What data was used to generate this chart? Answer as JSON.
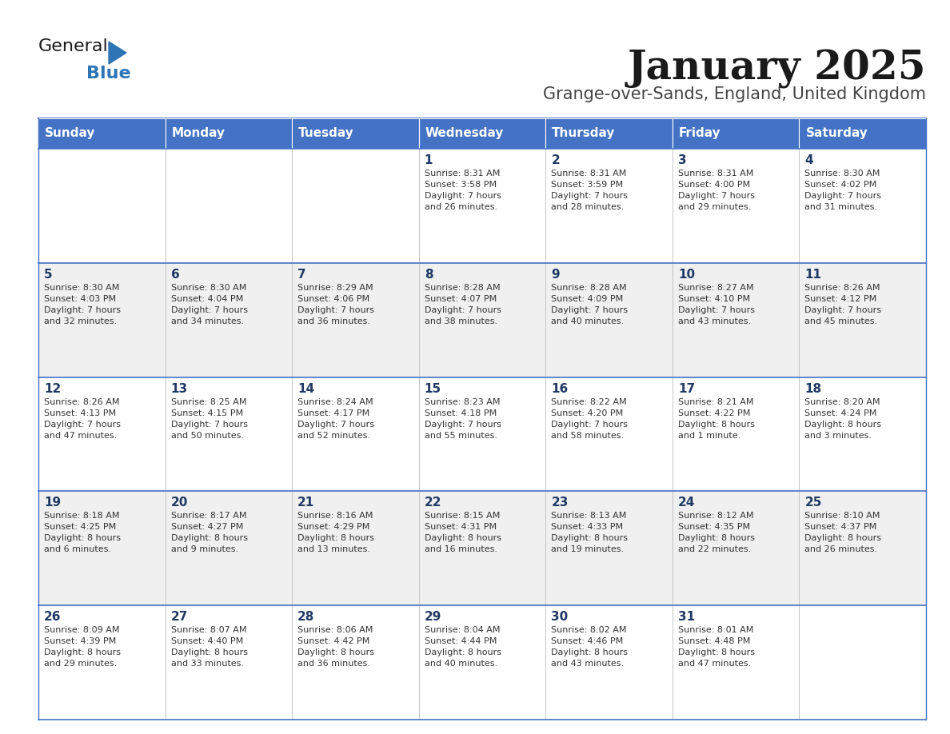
{
  "title": "January 2025",
  "subtitle": "Grange-over-Sands, England, United Kingdom",
  "header_bg": "#4472C4",
  "header_text_color": "#FFFFFF",
  "days_of_week": [
    "Sunday",
    "Monday",
    "Tuesday",
    "Wednesday",
    "Thursday",
    "Friday",
    "Saturday"
  ],
  "row_bg_odd": "#FFFFFF",
  "row_bg_even": "#F0F0F0",
  "cell_text_color": "#333333",
  "day_num_color": "#1F3864",
  "divider_color": "#4472C4",
  "logo_general_color": "#222222",
  "logo_blue_color": "#2E75B6",
  "calendar": [
    [
      {
        "day": "",
        "sunrise": "",
        "sunset": "",
        "daylight": ""
      },
      {
        "day": "",
        "sunrise": "",
        "sunset": "",
        "daylight": ""
      },
      {
        "day": "",
        "sunrise": "",
        "sunset": "",
        "daylight": ""
      },
      {
        "day": "1",
        "sunrise": "8:31 AM",
        "sunset": "3:58 PM",
        "daylight": "7 hours\nand 26 minutes."
      },
      {
        "day": "2",
        "sunrise": "8:31 AM",
        "sunset": "3:59 PM",
        "daylight": "7 hours\nand 28 minutes."
      },
      {
        "day": "3",
        "sunrise": "8:31 AM",
        "sunset": "4:00 PM",
        "daylight": "7 hours\nand 29 minutes."
      },
      {
        "day": "4",
        "sunrise": "8:30 AM",
        "sunset": "4:02 PM",
        "daylight": "7 hours\nand 31 minutes."
      }
    ],
    [
      {
        "day": "5",
        "sunrise": "8:30 AM",
        "sunset": "4:03 PM",
        "daylight": "7 hours\nand 32 minutes."
      },
      {
        "day": "6",
        "sunrise": "8:30 AM",
        "sunset": "4:04 PM",
        "daylight": "7 hours\nand 34 minutes."
      },
      {
        "day": "7",
        "sunrise": "8:29 AM",
        "sunset": "4:06 PM",
        "daylight": "7 hours\nand 36 minutes."
      },
      {
        "day": "8",
        "sunrise": "8:28 AM",
        "sunset": "4:07 PM",
        "daylight": "7 hours\nand 38 minutes."
      },
      {
        "day": "9",
        "sunrise": "8:28 AM",
        "sunset": "4:09 PM",
        "daylight": "7 hours\nand 40 minutes."
      },
      {
        "day": "10",
        "sunrise": "8:27 AM",
        "sunset": "4:10 PM",
        "daylight": "7 hours\nand 43 minutes."
      },
      {
        "day": "11",
        "sunrise": "8:26 AM",
        "sunset": "4:12 PM",
        "daylight": "7 hours\nand 45 minutes."
      }
    ],
    [
      {
        "day": "12",
        "sunrise": "8:26 AM",
        "sunset": "4:13 PM",
        "daylight": "7 hours\nand 47 minutes."
      },
      {
        "day": "13",
        "sunrise": "8:25 AM",
        "sunset": "4:15 PM",
        "daylight": "7 hours\nand 50 minutes."
      },
      {
        "day": "14",
        "sunrise": "8:24 AM",
        "sunset": "4:17 PM",
        "daylight": "7 hours\nand 52 minutes."
      },
      {
        "day": "15",
        "sunrise": "8:23 AM",
        "sunset": "4:18 PM",
        "daylight": "7 hours\nand 55 minutes."
      },
      {
        "day": "16",
        "sunrise": "8:22 AM",
        "sunset": "4:20 PM",
        "daylight": "7 hours\nand 58 minutes."
      },
      {
        "day": "17",
        "sunrise": "8:21 AM",
        "sunset": "4:22 PM",
        "daylight": "8 hours\nand 1 minute."
      },
      {
        "day": "18",
        "sunrise": "8:20 AM",
        "sunset": "4:24 PM",
        "daylight": "8 hours\nand 3 minutes."
      }
    ],
    [
      {
        "day": "19",
        "sunrise": "8:18 AM",
        "sunset": "4:25 PM",
        "daylight": "8 hours\nand 6 minutes."
      },
      {
        "day": "20",
        "sunrise": "8:17 AM",
        "sunset": "4:27 PM",
        "daylight": "8 hours\nand 9 minutes."
      },
      {
        "day": "21",
        "sunrise": "8:16 AM",
        "sunset": "4:29 PM",
        "daylight": "8 hours\nand 13 minutes."
      },
      {
        "day": "22",
        "sunrise": "8:15 AM",
        "sunset": "4:31 PM",
        "daylight": "8 hours\nand 16 minutes."
      },
      {
        "day": "23",
        "sunrise": "8:13 AM",
        "sunset": "4:33 PM",
        "daylight": "8 hours\nand 19 minutes."
      },
      {
        "day": "24",
        "sunrise": "8:12 AM",
        "sunset": "4:35 PM",
        "daylight": "8 hours\nand 22 minutes."
      },
      {
        "day": "25",
        "sunrise": "8:10 AM",
        "sunset": "4:37 PM",
        "daylight": "8 hours\nand 26 minutes."
      }
    ],
    [
      {
        "day": "26",
        "sunrise": "8:09 AM",
        "sunset": "4:39 PM",
        "daylight": "8 hours\nand 29 minutes."
      },
      {
        "day": "27",
        "sunrise": "8:07 AM",
        "sunset": "4:40 PM",
        "daylight": "8 hours\nand 33 minutes."
      },
      {
        "day": "28",
        "sunrise": "8:06 AM",
        "sunset": "4:42 PM",
        "daylight": "8 hours\nand 36 minutes."
      },
      {
        "day": "29",
        "sunrise": "8:04 AM",
        "sunset": "4:44 PM",
        "daylight": "8 hours\nand 40 minutes."
      },
      {
        "day": "30",
        "sunrise": "8:02 AM",
        "sunset": "4:46 PM",
        "daylight": "8 hours\nand 43 minutes."
      },
      {
        "day": "31",
        "sunrise": "8:01 AM",
        "sunset": "4:48 PM",
        "daylight": "8 hours\nand 47 minutes."
      },
      {
        "day": "",
        "sunrise": "",
        "sunset": "",
        "daylight": ""
      }
    ]
  ]
}
